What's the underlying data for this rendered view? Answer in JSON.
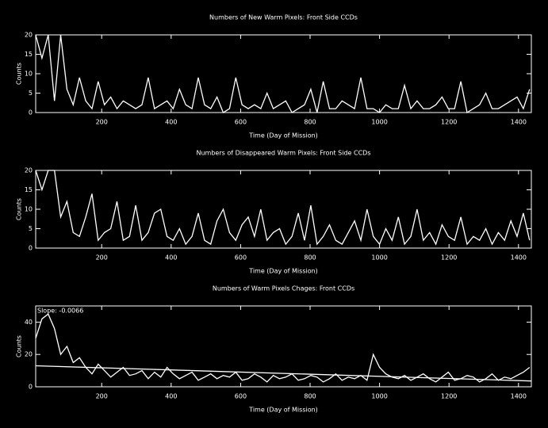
{
  "chart_data": [
    {
      "type": "line",
      "title": "Numbers of New Warm Pixels: Front Side CCDs",
      "xlabel": "Time (Day of Mission)",
      "ylabel": "Counts",
      "color": "#ffffff",
      "x": [
        10,
        28,
        46,
        64,
        82,
        100,
        118,
        136,
        154,
        172,
        190,
        208,
        226,
        244,
        262,
        280,
        298,
        316,
        334,
        352,
        370,
        388,
        406,
        424,
        442,
        460,
        478,
        496,
        514,
        532,
        550,
        568,
        586,
        604,
        622,
        640,
        658,
        676,
        694,
        712,
        730,
        748,
        766,
        784,
        802,
        820,
        838,
        856,
        874,
        892,
        910,
        928,
        946,
        964,
        982,
        1000,
        1018,
        1036,
        1054,
        1072,
        1090,
        1108,
        1126,
        1144,
        1162,
        1180,
        1198,
        1216,
        1234,
        1252,
        1270,
        1288,
        1306,
        1324,
        1342,
        1360,
        1378,
        1396,
        1414,
        1432
      ],
      "values": [
        20,
        14,
        20,
        3,
        20,
        6,
        2,
        9,
        3,
        1,
        8,
        2,
        4,
        1,
        3,
        2,
        1,
        2,
        9,
        1,
        2,
        3,
        1,
        6,
        2,
        1,
        9,
        2,
        1,
        4,
        0,
        1,
        9,
        2,
        1,
        2,
        1,
        5,
        1,
        2,
        3,
        0,
        1,
        2,
        6,
        0,
        8,
        1,
        1,
        3,
        2,
        1,
        9,
        1,
        1,
        0,
        2,
        1,
        1,
        7,
        1,
        3,
        1,
        1,
        2,
        4,
        1,
        1,
        8,
        0,
        1,
        2,
        5,
        1,
        1,
        2,
        3,
        4,
        1,
        6
      ],
      "xlim": [
        10,
        1437
      ],
      "xticks": [
        200,
        400,
        600,
        800,
        1000,
        1200,
        1400
      ],
      "ylim": [
        0,
        20
      ],
      "yticks": [
        0,
        5,
        10,
        15,
        20
      ]
    },
    {
      "type": "line",
      "title": "Numbers of Disappeared Warm Pixels: Front Side CCDs",
      "xlabel": "Time (Day of Mission)",
      "ylabel": "Counts",
      "color": "#ffffff",
      "x": [
        10,
        28,
        46,
        64,
        82,
        100,
        118,
        136,
        154,
        172,
        190,
        208,
        226,
        244,
        262,
        280,
        298,
        316,
        334,
        352,
        370,
        388,
        406,
        424,
        442,
        460,
        478,
        496,
        514,
        532,
        550,
        568,
        586,
        604,
        622,
        640,
        658,
        676,
        694,
        712,
        730,
        748,
        766,
        784,
        802,
        820,
        838,
        856,
        874,
        892,
        910,
        928,
        946,
        964,
        982,
        1000,
        1018,
        1036,
        1054,
        1072,
        1090,
        1108,
        1126,
        1144,
        1162,
        1180,
        1198,
        1216,
        1234,
        1252,
        1270,
        1288,
        1306,
        1324,
        1342,
        1360,
        1378,
        1396,
        1414,
        1432
      ],
      "values": [
        20,
        15,
        20,
        20,
        8,
        12,
        4,
        3,
        8,
        14,
        2,
        4,
        5,
        12,
        2,
        3,
        11,
        2,
        4,
        9,
        10,
        3,
        2,
        5,
        1,
        3,
        9,
        2,
        1,
        7,
        10,
        4,
        2,
        6,
        8,
        3,
        10,
        2,
        4,
        5,
        1,
        3,
        9,
        2,
        11,
        1,
        3,
        6,
        2,
        1,
        4,
        7,
        2,
        10,
        3,
        1,
        5,
        2,
        8,
        1,
        3,
        10,
        2,
        4,
        1,
        6,
        3,
        2,
        8,
        1,
        3,
        2,
        5,
        1,
        4,
        2,
        7,
        3,
        9,
        2
      ],
      "xlim": [
        10,
        1437
      ],
      "xticks": [
        200,
        400,
        600,
        800,
        1000,
        1200,
        1400
      ],
      "ylim": [
        0,
        20
      ],
      "yticks": [
        0,
        5,
        10,
        15,
        20
      ]
    },
    {
      "type": "line",
      "title": "Numbers of Warm Pixels Chages: Front CCDs",
      "xlabel": "Time (Day of Mission)",
      "ylabel": "Counts",
      "color": "#ffffff",
      "annotation": "Slope: -0.0066",
      "x": [
        10,
        28,
        46,
        64,
        82,
        100,
        118,
        136,
        154,
        172,
        190,
        208,
        226,
        244,
        262,
        280,
        298,
        316,
        334,
        352,
        370,
        388,
        406,
        424,
        442,
        460,
        478,
        496,
        514,
        532,
        550,
        568,
        586,
        604,
        622,
        640,
        658,
        676,
        694,
        712,
        730,
        748,
        766,
        784,
        802,
        820,
        838,
        856,
        874,
        892,
        910,
        928,
        946,
        964,
        982,
        1000,
        1018,
        1036,
        1054,
        1072,
        1090,
        1108,
        1126,
        1144,
        1162,
        1180,
        1198,
        1216,
        1234,
        1252,
        1270,
        1288,
        1306,
        1324,
        1342,
        1360,
        1378,
        1396,
        1414,
        1432
      ],
      "values": [
        30,
        42,
        45,
        36,
        20,
        25,
        15,
        18,
        12,
        8,
        14,
        10,
        6,
        9,
        12,
        7,
        8,
        10,
        5,
        9,
        6,
        12,
        8,
        5,
        7,
        9,
        4,
        6,
        8,
        5,
        7,
        6,
        9,
        4,
        5,
        8,
        6,
        3,
        7,
        5,
        6,
        8,
        4,
        5,
        7,
        6,
        3,
        5,
        8,
        4,
        6,
        5,
        7,
        4,
        20,
        12,
        8,
        6,
        5,
        7,
        4,
        6,
        8,
        5,
        3,
        6,
        9,
        4,
        5,
        7,
        6,
        3,
        5,
        8,
        4,
        6,
        5,
        7,
        9,
        12
      ],
      "fit": {
        "x": [
          10,
          1437
        ],
        "values": [
          13,
          3.6
        ]
      },
      "xlim": [
        10,
        1437
      ],
      "xticks": [
        200,
        400,
        600,
        800,
        1000,
        1200,
        1400
      ],
      "ylim": [
        0,
        50
      ],
      "yticks": [
        0,
        20,
        40
      ]
    }
  ]
}
